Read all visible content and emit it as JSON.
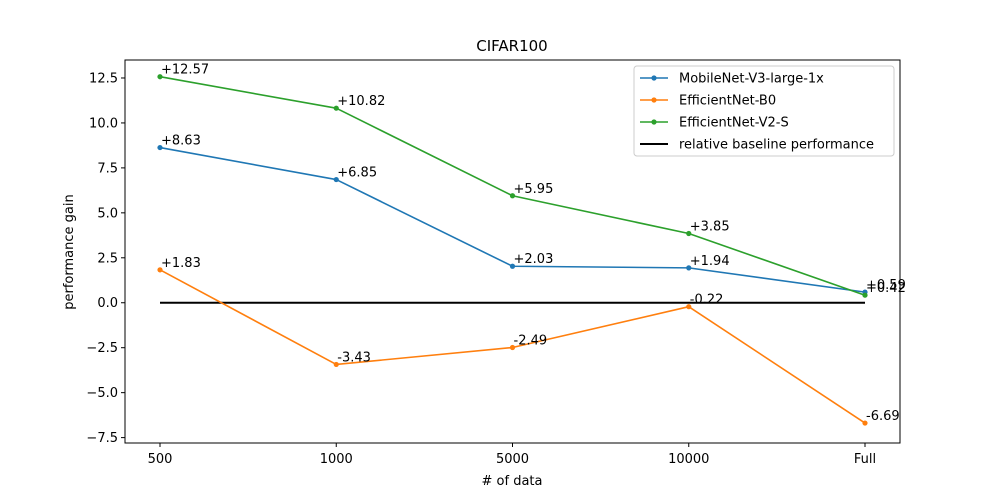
{
  "chart_data": {
    "type": "line",
    "title": "CIFAR100",
    "xlabel": "# of data",
    "ylabel": "performance gain",
    "categories": [
      "500",
      "1000",
      "5000",
      "10000",
      "Full"
    ],
    "ylim": [
      -7.8,
      13.5
    ],
    "yticks": [
      -7.5,
      -5.0,
      -2.5,
      0.0,
      2.5,
      5.0,
      7.5,
      10.0,
      12.5
    ],
    "ytick_labels": [
      "−7.5",
      "−5.0",
      "−2.5",
      "0.0",
      "2.5",
      "5.0",
      "7.5",
      "10.0",
      "12.5"
    ],
    "grid": false,
    "legend_position": "top-right",
    "series": [
      {
        "name": "MobileNet-V3-large-1x",
        "color": "#1f77b4",
        "values": [
          8.63,
          6.85,
          2.03,
          1.94,
          0.59
        ],
        "labels": [
          "+8.63",
          "+6.85",
          "+2.03",
          "+1.94",
          "+0.59"
        ]
      },
      {
        "name": "EfficientNet-B0",
        "color": "#ff7f0e",
        "values": [
          1.83,
          -3.43,
          -2.49,
          -0.22,
          -6.69
        ],
        "labels": [
          "+1.83",
          "-3.43",
          "-2.49",
          "-0.22",
          "-6.69"
        ]
      },
      {
        "name": "EfficientNet-V2-S",
        "color": "#2ca02c",
        "values": [
          12.57,
          10.82,
          5.95,
          3.85,
          0.42
        ],
        "labels": [
          "+12.57",
          "+10.82",
          "+5.95",
          "+3.85",
          "+0.42"
        ]
      }
    ],
    "baseline": {
      "name": "relative baseline performance",
      "value": 0,
      "color": "#000000"
    }
  }
}
